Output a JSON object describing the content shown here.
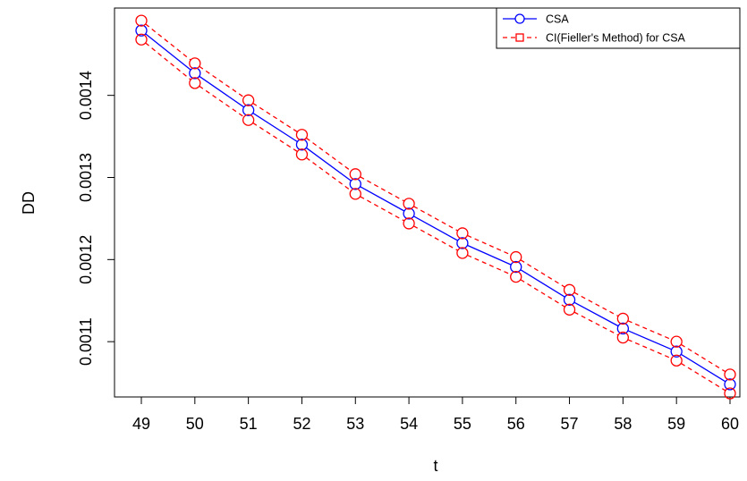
{
  "chart_data": {
    "type": "line",
    "title": "",
    "xlabel": "t",
    "ylabel": "DD",
    "x": [
      49,
      50,
      51,
      52,
      53,
      54,
      55,
      56,
      57,
      58,
      59,
      60
    ],
    "xlim": [
      49,
      60
    ],
    "ylim": [
      0.001037,
      0.001502
    ],
    "y_ticks": [
      0.0011,
      0.0012,
      0.0013,
      0.0014
    ],
    "y_tick_labels": [
      "0.0011",
      "0.0012",
      "0.0013",
      "0.0014"
    ],
    "x_tick_labels": [
      "49",
      "50",
      "51",
      "52",
      "53",
      "54",
      "55",
      "56",
      "57",
      "58",
      "59",
      "60"
    ],
    "grid": false,
    "legend_position": "top-right",
    "series": [
      {
        "name": "CSA",
        "color": "#0000ff",
        "line": "solid",
        "marker": "circle",
        "values": [
          0.001479,
          0.001427,
          0.001382,
          0.00134,
          0.001292,
          0.001256,
          0.00122,
          0.001191,
          0.001151,
          0.001116,
          0.001088,
          0.001048
        ]
      },
      {
        "name": "CI(Fieller's Method) for CSA",
        "color": "#ff0000",
        "line": "dashed",
        "marker": "circle",
        "band": "upper",
        "values": [
          0.001491,
          0.001439,
          0.001394,
          0.001352,
          0.001304,
          0.001268,
          0.001232,
          0.001203,
          0.001163,
          0.001128,
          0.0011,
          0.00106
        ]
      },
      {
        "name": "CI(Fieller's Method) for CSA",
        "color": "#ff0000",
        "line": "dashed",
        "marker": "circle",
        "band": "lower",
        "values": [
          0.001468,
          0.001415,
          0.00137,
          0.001328,
          0.00128,
          0.001244,
          0.001208,
          0.001179,
          0.001139,
          0.001105,
          0.001077,
          0.001037
        ]
      }
    ],
    "legend": [
      {
        "label": "CSA",
        "color": "#0000ff",
        "line": "solid",
        "marker": "circle"
      },
      {
        "label": "CI(Fieller's Method) for CSA",
        "color": "#ff0000",
        "line": "dashed",
        "marker": "square"
      }
    ]
  }
}
